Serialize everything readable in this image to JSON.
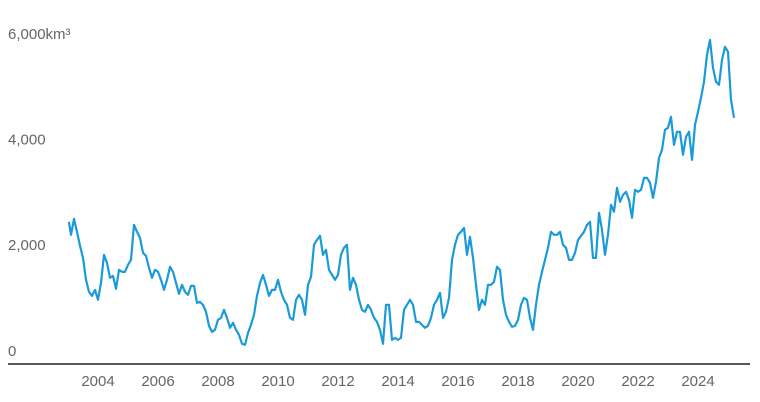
{
  "chart_data": {
    "type": "line",
    "xlim": [
      2001,
      2025.8
    ],
    "ylim": [
      -230,
      6000
    ],
    "xticks": [
      2004,
      2006,
      2008,
      2010,
      2012,
      2014,
      2016,
      2018,
      2020,
      2022,
      2024
    ],
    "yticks": [
      0,
      {
        "value": 2000,
        "label": "2,000"
      },
      {
        "value": 4000,
        "label": "4,000"
      },
      {
        "value": 6000,
        "label": "6,000km³"
      }
    ],
    "grid": false,
    "series": [
      {
        "color": "#1a9bd7",
        "x": [
          2003.03,
          2003.1,
          2003.2,
          2003.3,
          2003.4,
          2003.5,
          2003.6,
          2003.7,
          2003.8,
          2003.9,
          2004.0,
          2004.1,
          2004.2,
          2004.3,
          2004.4,
          2004.5,
          2004.6,
          2004.7,
          2004.8,
          2004.9,
          2005.0,
          2005.1,
          2005.2,
          2005.3,
          2005.4,
          2005.5,
          2005.6,
          2005.7,
          2005.8,
          2005.9,
          2006.0,
          2006.1,
          2006.2,
          2006.3,
          2006.4,
          2006.5,
          2006.6,
          2006.7,
          2006.8,
          2006.9,
          2007.0,
          2007.1,
          2007.2,
          2007.3,
          2007.4,
          2007.5,
          2007.6,
          2007.7,
          2007.8,
          2007.9,
          2008.0,
          2008.1,
          2008.2,
          2008.3,
          2008.4,
          2008.5,
          2008.6,
          2008.7,
          2008.8,
          2008.9,
          2009.0,
          2009.1,
          2009.2,
          2009.3,
          2009.4,
          2009.5,
          2009.6,
          2009.7,
          2009.8,
          2009.9,
          2010.0,
          2010.1,
          2010.2,
          2010.3,
          2010.4,
          2010.5,
          2010.6,
          2010.7,
          2010.8,
          2010.9,
          2011.0,
          2011.1,
          2011.2,
          2011.3,
          2011.4,
          2011.5,
          2011.6,
          2011.7,
          2011.8,
          2011.9,
          2012.0,
          2012.1,
          2012.2,
          2012.3,
          2012.4,
          2012.5,
          2012.6,
          2012.7,
          2012.8,
          2012.9,
          2013.0,
          2013.1,
          2013.2,
          2013.3,
          2013.4,
          2013.5,
          2013.6,
          2013.7,
          2013.8,
          2013.9,
          2014.0,
          2014.1,
          2014.2,
          2014.3,
          2014.4,
          2014.5,
          2014.6,
          2014.7,
          2014.8,
          2014.9,
          2015.0,
          2015.1,
          2015.2,
          2015.3,
          2015.4,
          2015.5,
          2015.6,
          2015.7,
          2015.8,
          2015.9,
          2016.0,
          2016.1,
          2016.2,
          2016.3,
          2016.4,
          2016.5,
          2016.6,
          2016.7,
          2016.8,
          2016.9,
          2017.0,
          2017.1,
          2017.2,
          2017.3,
          2017.4,
          2017.5,
          2017.6,
          2017.7,
          2017.8,
          2017.9,
          2018.0,
          2018.1,
          2018.2,
          2018.3,
          2018.4,
          2018.5,
          2018.6,
          2018.7,
          2018.8,
          2018.9,
          2019.0,
          2019.1,
          2019.2,
          2019.3,
          2019.4,
          2019.5,
          2019.6,
          2019.7,
          2019.8,
          2019.9,
          2020.0,
          2020.1,
          2020.2,
          2020.3,
          2020.4,
          2020.5,
          2020.6,
          2020.7,
          2020.8,
          2020.9,
          2021.0,
          2021.1,
          2021.2,
          2021.3,
          2021.4,
          2021.5,
          2021.6,
          2021.7,
          2021.8,
          2021.9,
          2022.0,
          2022.1,
          2022.2,
          2022.3,
          2022.4,
          2022.5,
          2022.6,
          2022.7,
          2022.8,
          2022.9,
          2023.0,
          2023.1,
          2023.2,
          2023.3,
          2023.4,
          2023.5,
          2023.6,
          2023.7,
          2023.8,
          2023.9,
          2024.0,
          2024.1,
          2024.2,
          2024.3,
          2024.4,
          2024.5,
          2024.6,
          2024.7,
          2024.8,
          2024.9,
          2025.0,
          2025.1,
          2025.2
        ],
        "values": [
          2463,
          2216,
          2519,
          2273,
          2008,
          1780,
          1364,
          1136,
          1061,
          1174,
          985,
          1307,
          1837,
          1686,
          1402,
          1439,
          1193,
          1553,
          1515,
          1515,
          1648,
          1742,
          2405,
          2273,
          2159,
          1875,
          1818,
          1591,
          1402,
          1553,
          1515,
          1364,
          1174,
          1364,
          1610,
          1515,
          1307,
          1098,
          1269,
          1136,
          1080,
          1250,
          1250,
          928,
          947,
          890,
          758,
          492,
          379,
          417,
          606,
          644,
          795,
          644,
          455,
          549,
          417,
          322,
          152,
          133,
          360,
          511,
          701,
          1061,
          1307,
          1458,
          1269,
          1061,
          1174,
          1174,
          1364,
          1136,
          985,
          890,
          644,
          606,
          985,
          1080,
          985,
          701,
          1269,
          1420,
          2027,
          2121,
          2197,
          1837,
          1932,
          1553,
          1458,
          1364,
          1458,
          1837,
          1970,
          2027,
          1174,
          1402,
          1269,
          985,
          795,
          758,
          890,
          795,
          644,
          568,
          417,
          152,
          890,
          890,
          227,
          265,
          227,
          265,
          795,
          890,
          985,
          890,
          568,
          568,
          511,
          455,
          492,
          644,
          890,
          985,
          1117,
          644,
          758,
          1023,
          1742,
          2027,
          2216,
          2273,
          2348,
          1837,
          2178,
          1780,
          1269,
          795,
          985,
          890,
          1269,
          1269,
          1326,
          1610,
          1553,
          985,
          701,
          568,
          474,
          492,
          606,
          890,
          1023,
          985,
          644,
          417,
          890,
          1269,
          1515,
          1742,
          1970,
          2273,
          2216,
          2216,
          2273,
          2027,
          1970,
          1742,
          1742,
          1875,
          2121,
          2197,
          2273,
          2405,
          2462,
          1780,
          1780,
          2633,
          2311,
          1837,
          2216,
          2784,
          2652,
          3106,
          2841,
          2973,
          3030,
          2879,
          2538,
          3068,
          3030,
          3068,
          3295,
          3295,
          3201,
          2917,
          3220,
          3674,
          3826,
          4205,
          4242,
          4451,
          3920,
          4167,
          4167,
          3731,
          4072,
          4167,
          3636,
          4299,
          4545,
          4811,
          5114,
          5625,
          5909,
          5379,
          5114,
          5057,
          5530,
          5777,
          5682,
          4773,
          4432
        ]
      }
    ]
  }
}
